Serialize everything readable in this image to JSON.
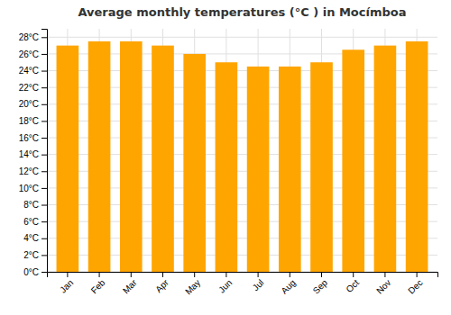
{
  "chart_data": {
    "type": "bar",
    "title": "Average monthly temperatures (°C ) in Mocí­mboa",
    "categories": [
      "Jan",
      "Feb",
      "Mar",
      "Apr",
      "May",
      "Jun",
      "Jul",
      "Aug",
      "Sep",
      "Oct",
      "Nov",
      "Dec"
    ],
    "values": [
      27.0,
      27.5,
      27.5,
      27.0,
      26.0,
      25.0,
      24.5,
      24.5,
      25.0,
      26.5,
      27.0,
      27.5
    ],
    "color": "#FFA500",
    "ylim": [
      0,
      29
    ],
    "yticks": [
      {
        "value": 0,
        "label": "0°C"
      },
      {
        "value": 2,
        "label": "2°C"
      },
      {
        "value": 4,
        "label": "4°C"
      },
      {
        "value": 6,
        "label": "6°C"
      },
      {
        "value": 8,
        "label": "8°C"
      },
      {
        "value": 10,
        "label": "10°C"
      },
      {
        "value": 12,
        "label": "12°C"
      },
      {
        "value": 14,
        "label": "14°C"
      },
      {
        "value": 16,
        "label": "16°C"
      },
      {
        "value": 18,
        "label": "18°C"
      },
      {
        "value": 20,
        "label": "20°C"
      },
      {
        "value": 22,
        "label": "22°C"
      },
      {
        "value": 24,
        "label": "24°C"
      },
      {
        "value": 26,
        "label": "26°C"
      },
      {
        "value": 28,
        "label": "28°C"
      }
    ],
    "grid": true
  }
}
